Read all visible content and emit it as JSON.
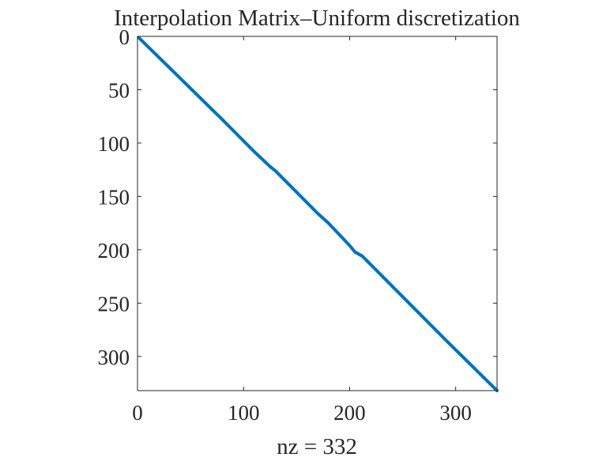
{
  "chart_data": {
    "type": "scatter",
    "title": "Interpolation Matrix–Uniform discretization",
    "xlabel": "nz = 332",
    "ylabel": "",
    "xlim": [
      0,
      339
    ],
    "ylim": [
      0,
      332
    ],
    "y_reversed": true,
    "x_ticks": [
      0,
      100,
      200,
      300
    ],
    "y_ticks": [
      0,
      50,
      100,
      150,
      200,
      250,
      300
    ],
    "grid": false,
    "legend": "none",
    "series": [
      {
        "pattern": "near-diagonal sparsity",
        "points": [
          [
            1,
            1
          ],
          [
            40,
            39
          ],
          [
            80,
            78
          ],
          [
            110,
            108
          ],
          [
            125,
            122
          ],
          [
            130,
            126
          ],
          [
            150,
            146
          ],
          [
            170,
            166
          ],
          [
            180,
            175
          ],
          [
            200,
            196
          ],
          [
            205,
            202
          ],
          [
            212,
            206
          ],
          [
            250,
            244
          ],
          [
            290,
            284
          ],
          [
            339,
            332
          ]
        ]
      }
    ],
    "colors": {
      "marker": "#0072BD",
      "axes": "#262626",
      "background": "#ffffff"
    }
  }
}
